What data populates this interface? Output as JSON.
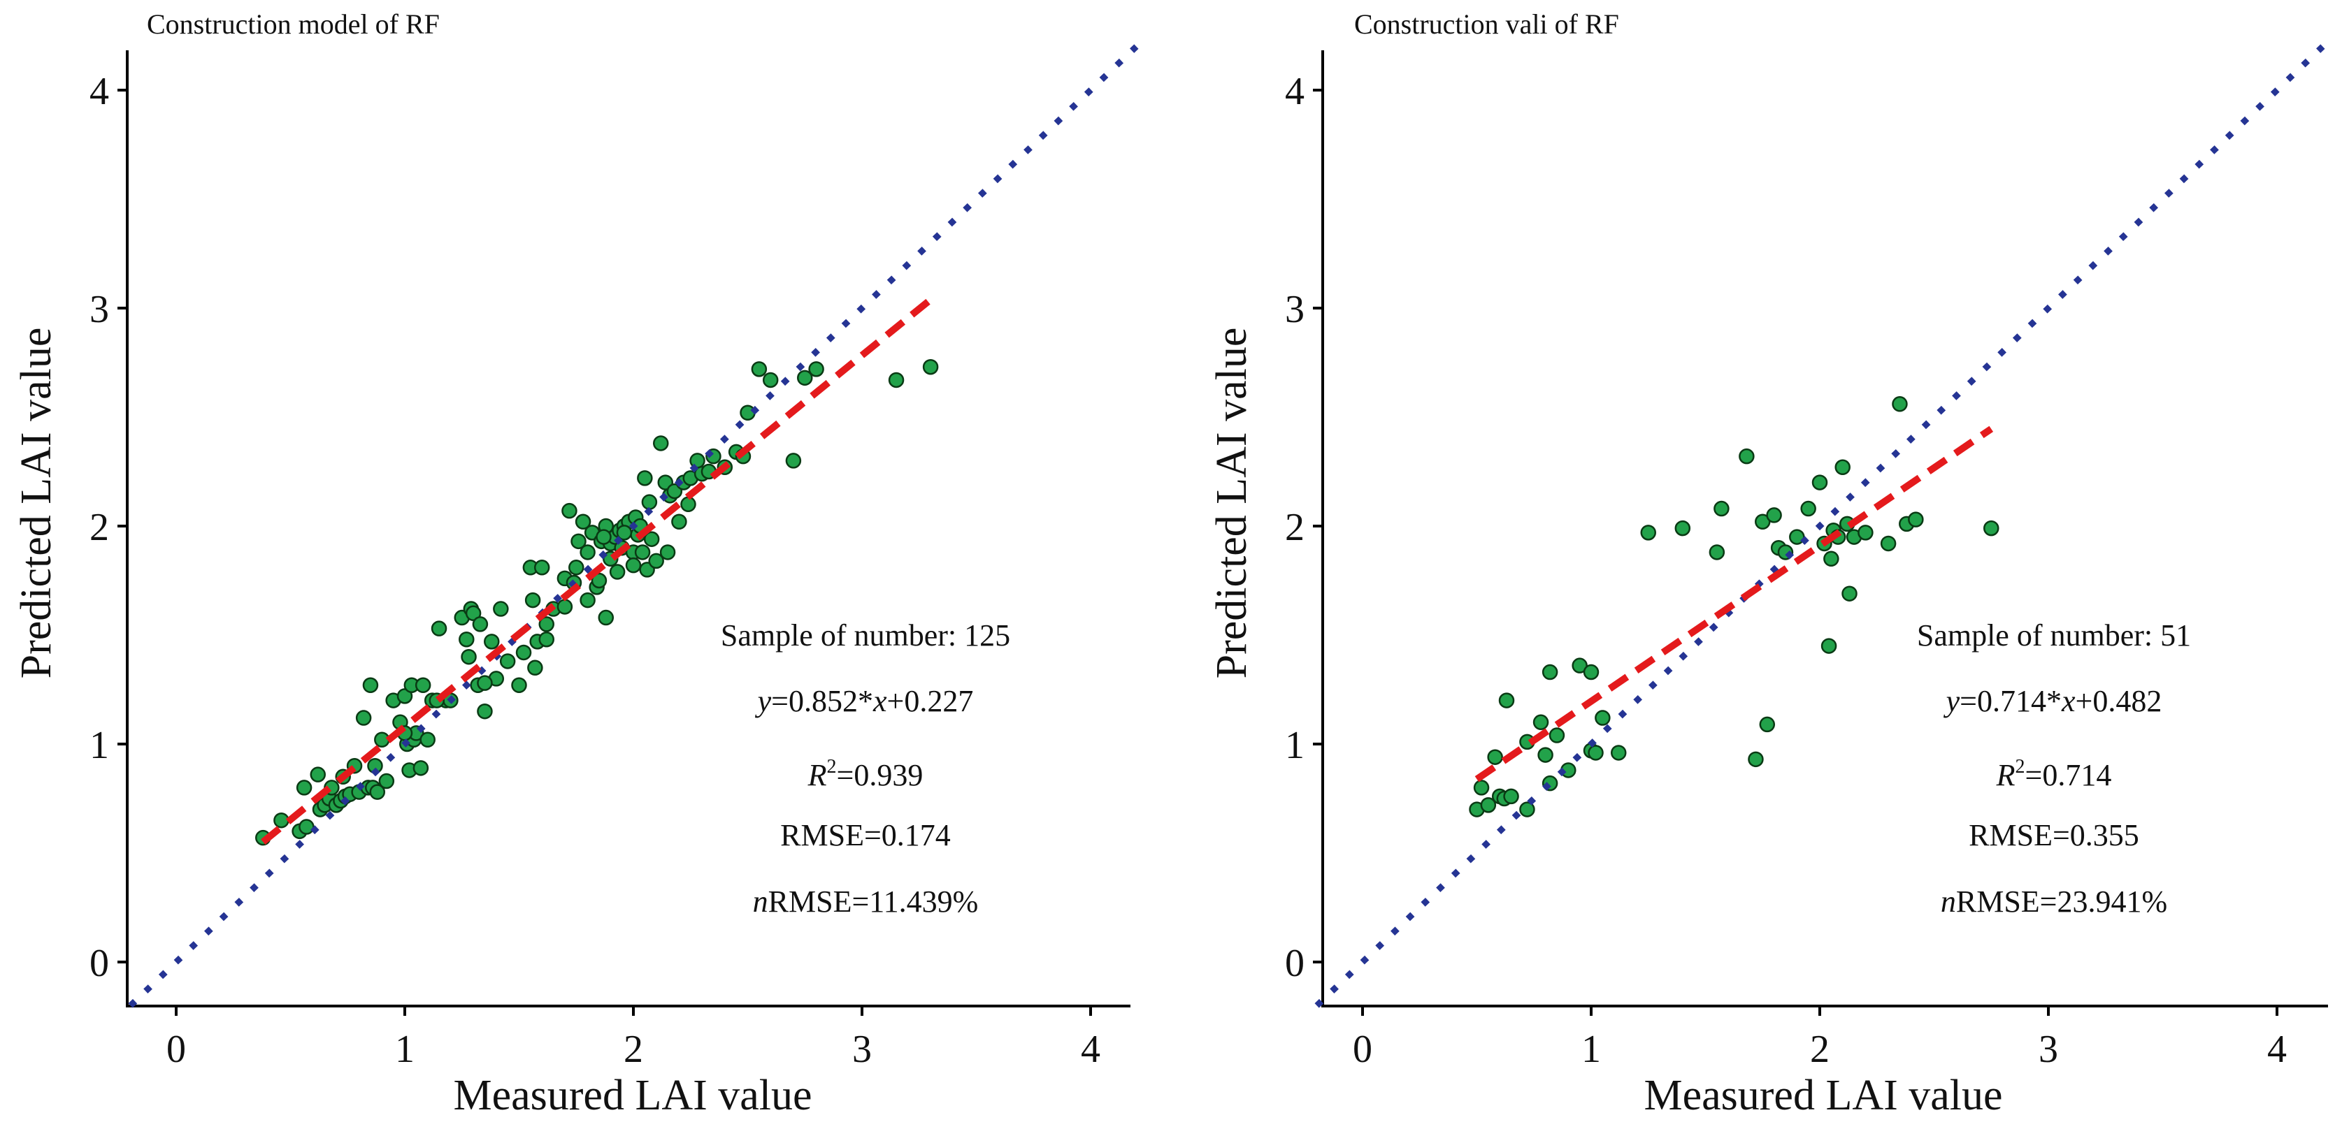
{
  "figure": {
    "panels": [
      {
        "title": "Construction model of RF",
        "xlabel": "Measured LAI value",
        "ylabel": "Predicted LAI value",
        "stats": {
          "sample": "Sample of number: 125",
          "eq_prefix": "y",
          "eq_mid": "=0.852*",
          "eq_x": "x",
          "eq_suffix": "+0.227",
          "r2_R": "R",
          "r2_sup": "2",
          "r2_val": "=0.939",
          "rmse": "RMSE=0.174",
          "nrmse_n": "n",
          "nrmse_rest": "RMSE=11.439%"
        }
      },
      {
        "title": "Construction vali  of RF",
        "xlabel": "Measured LAI value",
        "ylabel": "Predicted LAI value",
        "stats": {
          "sample": "Sample of number: 51",
          "eq_prefix": "y",
          "eq_mid": "=0.714*",
          "eq_x": "x",
          "eq_suffix": "+0.482",
          "r2_R": "R",
          "r2_sup": "2",
          "r2_val": "=0.714",
          "rmse": "RMSE=0.355",
          "nrmse_n": "n",
          "nrmse_rest": "RMSE=23.941%"
        }
      }
    ]
  },
  "chart_data": [
    {
      "type": "scatter",
      "title": "Construction model of RF",
      "xlabel": "Measured LAI value",
      "ylabel": "Predicted LAI value",
      "xlim": [
        -0.2,
        4.2
      ],
      "ylim": [
        -0.2,
        4.2
      ],
      "xticks": [
        "0",
        "1",
        "2",
        "3",
        "4"
      ],
      "yticks": [
        "0",
        "1",
        "2",
        "3",
        "4"
      ],
      "grid": false,
      "colors": {
        "points": "#22a24a",
        "point_edge": "#0a3a14",
        "fit_line": "#e41a1c",
        "one_to_one": "#253494",
        "axis": "#000000"
      },
      "series": [
        {
          "kind": "points",
          "x": [
            0.38,
            0.46,
            0.54,
            0.56,
            0.57,
            0.62,
            0.63,
            0.65,
            0.67,
            0.68,
            0.7,
            0.72,
            0.73,
            0.74,
            0.76,
            0.78,
            0.8,
            0.82,
            0.84,
            0.85,
            0.86,
            0.88,
            0.9,
            0.92,
            0.95,
            0.98,
            1.0,
            1.01,
            1.02,
            1.03,
            1.04,
            1.05,
            1.07,
            1.08,
            1.1,
            1.12,
            1.15,
            1.18,
            1.2,
            1.25,
            1.27,
            1.28,
            1.29,
            1.3,
            1.32,
            1.35,
            1.38,
            1.4,
            1.42,
            1.5,
            1.52,
            1.55,
            1.56,
            1.57,
            1.58,
            1.6,
            1.62,
            1.65,
            1.7,
            1.72,
            1.74,
            1.75,
            1.76,
            1.78,
            1.8,
            1.8,
            1.82,
            1.84,
            1.85,
            1.86,
            1.88,
            1.88,
            1.9,
            1.9,
            1.92,
            1.94,
            1.95,
            1.96,
            1.98,
            2.0,
            2.0,
            2.01,
            2.02,
            2.03,
            2.04,
            2.05,
            2.06,
            2.08,
            2.1,
            2.12,
            2.14,
            2.15,
            2.16,
            2.18,
            2.2,
            2.22,
            2.25,
            2.28,
            2.3,
            2.35,
            2.4,
            2.45,
            2.5,
            2.55,
            2.6,
            2.7,
            2.75,
            2.8,
            3.15,
            3.3,
            0.87,
            1.0,
            1.14,
            1.33,
            1.45,
            1.62,
            1.7,
            1.87,
            1.93,
            2.07,
            2.24,
            2.33,
            2.48,
            1.35,
            1.96
          ],
          "y": [
            0.57,
            0.65,
            0.6,
            0.8,
            0.62,
            0.86,
            0.7,
            0.72,
            0.75,
            0.8,
            0.72,
            0.74,
            0.85,
            0.76,
            0.77,
            0.9,
            0.78,
            1.12,
            0.8,
            1.27,
            0.8,
            0.78,
            1.02,
            0.83,
            1.2,
            1.1,
            1.22,
            1.0,
            0.88,
            1.27,
            1.02,
            1.05,
            0.89,
            1.27,
            1.02,
            1.2,
            1.53,
            1.2,
            1.2,
            1.58,
            1.48,
            1.4,
            1.62,
            1.6,
            1.27,
            1.15,
            1.47,
            1.3,
            1.62,
            1.27,
            1.42,
            1.81,
            1.66,
            1.35,
            1.47,
            1.81,
            1.55,
            1.62,
            1.76,
            2.07,
            1.74,
            1.81,
            1.93,
            2.02,
            1.66,
            1.88,
            1.97,
            1.72,
            1.75,
            1.93,
            1.58,
            2.0,
            1.92,
            1.85,
            1.95,
            1.98,
            1.9,
            2.0,
            2.02,
            1.88,
            1.82,
            2.04,
            1.96,
            2.0,
            1.88,
            2.22,
            1.8,
            1.94,
            1.84,
            2.38,
            2.2,
            1.88,
            2.14,
            2.16,
            2.02,
            2.2,
            2.22,
            2.3,
            2.24,
            2.32,
            2.27,
            2.34,
            2.52,
            2.72,
            2.67,
            2.3,
            2.68,
            2.72,
            2.67,
            2.73,
            0.9,
            1.05,
            1.2,
            1.55,
            1.38,
            1.48,
            1.63,
            1.95,
            1.79,
            2.11,
            2.1,
            2.25,
            2.32,
            1.28,
            1.97
          ]
        },
        {
          "kind": "fit_line",
          "x": [
            0.38,
            3.3
          ],
          "y": [
            0.551,
            3.039
          ]
        },
        {
          "kind": "one_to_one",
          "x": [
            -0.2,
            4.2
          ],
          "y": [
            -0.2,
            4.2
          ]
        }
      ]
    },
    {
      "type": "scatter",
      "title": "Construction vali  of RF",
      "xlabel": "Measured LAI value",
      "ylabel": "Predicted LAI value",
      "xlim": [
        -0.2,
        4.2
      ],
      "ylim": [
        -0.2,
        4.2
      ],
      "xticks": [
        "0",
        "1",
        "2",
        "3",
        "4"
      ],
      "yticks": [
        "0",
        "1",
        "2",
        "3",
        "4"
      ],
      "grid": false,
      "colors": {
        "points": "#22a24a",
        "point_edge": "#0a3a14",
        "fit_line": "#e41a1c",
        "one_to_one": "#253494",
        "axis": "#000000"
      },
      "series": [
        {
          "kind": "points",
          "x": [
            0.5,
            0.52,
            0.55,
            0.58,
            0.6,
            0.62,
            0.63,
            0.65,
            0.72,
            0.72,
            0.78,
            0.8,
            0.82,
            0.82,
            0.85,
            0.9,
            0.95,
            1.0,
            1.0,
            1.02,
            1.05,
            1.12,
            1.25,
            1.4,
            1.55,
            1.57,
            1.68,
            1.72,
            1.75,
            1.77,
            1.8,
            1.82,
            1.85,
            1.9,
            1.95,
            2.0,
            2.02,
            2.05,
            2.06,
            2.08,
            2.1,
            2.12,
            2.13,
            2.15,
            2.2,
            2.3,
            2.35,
            2.38,
            2.42,
            2.75,
            2.04
          ],
          "y": [
            0.7,
            0.8,
            0.72,
            0.94,
            0.76,
            0.75,
            1.2,
            0.76,
            1.01,
            0.7,
            1.1,
            0.95,
            0.82,
            1.33,
            1.04,
            0.88,
            1.36,
            0.97,
            1.33,
            0.96,
            1.12,
            0.96,
            1.97,
            1.99,
            1.88,
            2.08,
            2.32,
            0.93,
            2.02,
            1.09,
            2.05,
            1.9,
            1.88,
            1.95,
            2.08,
            2.2,
            1.92,
            1.85,
            1.98,
            1.95,
            2.27,
            2.01,
            1.69,
            1.95,
            1.97,
            1.92,
            2.56,
            2.01,
            2.03,
            1.99,
            1.45
          ]
        },
        {
          "kind": "fit_line",
          "x": [
            0.5,
            2.75
          ],
          "y": [
            0.839,
            2.446
          ]
        },
        {
          "kind": "one_to_one",
          "x": [
            -0.2,
            4.2
          ],
          "y": [
            -0.2,
            4.2
          ]
        }
      ]
    }
  ]
}
